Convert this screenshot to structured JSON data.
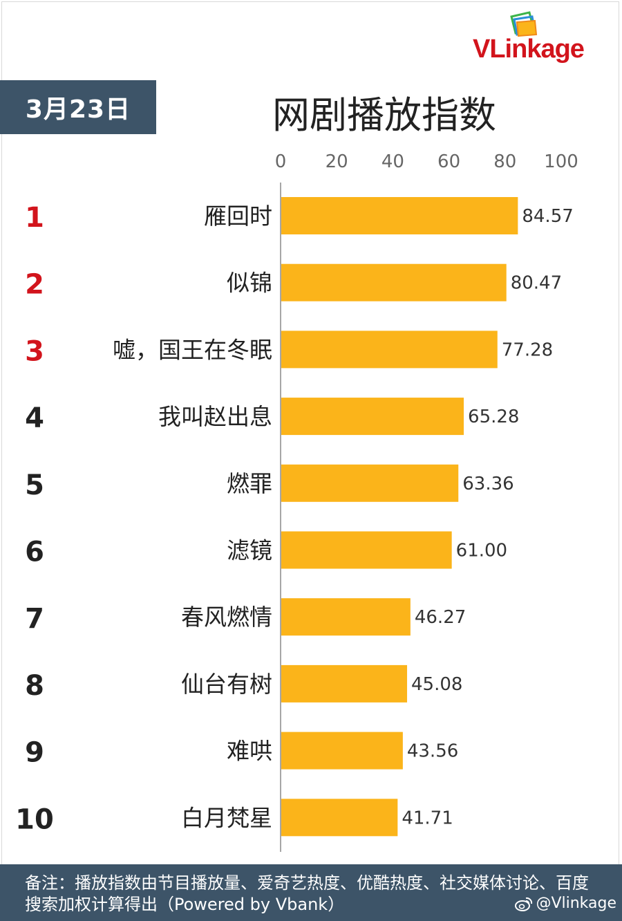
{
  "date_label": "3月23日",
  "brand": {
    "name": "VLinkage",
    "weibo_handle": "@Vlinkage"
  },
  "footer_note": "备注：播放指数由节目播放量、爱奇艺热度、优酷热度、社交媒体讨论、百度搜索加权计算得出（Powered by Vbank）",
  "colors": {
    "bar": "#fbb41a",
    "top_rank": "#d2141c",
    "rank": "#222222",
    "banner": "#3d5468"
  },
  "chart_data": {
    "type": "bar",
    "orientation": "horizontal",
    "title": "网剧播放指数",
    "xlim": [
      0,
      100
    ],
    "x_ticks": [
      "0",
      "20",
      "40",
      "60",
      "80",
      "100"
    ],
    "ranks": [
      "1",
      "2",
      "3",
      "4",
      "5",
      "6",
      "7",
      "8",
      "9",
      "10"
    ],
    "categories": [
      "雁回时",
      "似锦",
      "嘘，国王在冬眠",
      "我叫赵出息",
      "燃罪",
      "滤镜",
      "春风燃情",
      "仙台有树",
      "难哄",
      "白月梵星"
    ],
    "values": [
      84.57,
      80.47,
      77.28,
      65.28,
      63.36,
      61.0,
      46.27,
      45.08,
      43.56,
      41.71
    ],
    "value_labels": [
      "84.57",
      "80.47",
      "77.28",
      "65.28",
      "63.36",
      "61.00",
      "46.27",
      "45.08",
      "43.56",
      "41.71"
    ],
    "grid": false,
    "legend": "none"
  }
}
